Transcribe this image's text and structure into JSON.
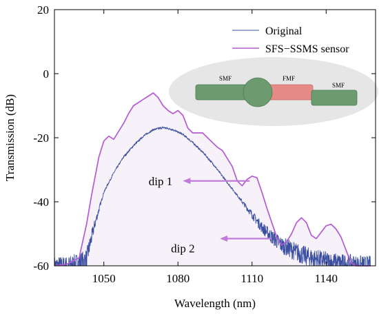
{
  "chart_data": {
    "type": "line",
    "xlabel": "Wavelength (nm)",
    "ylabel": "Transmission (dB)",
    "xlim": [
      1030,
      1160
    ],
    "ylim": [
      -60,
      20
    ],
    "xticks": [
      1050,
      1080,
      1110,
      1140
    ],
    "yticks": [
      -60,
      -40,
      -20,
      0,
      20
    ],
    "grid": false,
    "legend_position": "top-right",
    "colors": {
      "original": "#3a4fa0",
      "sensor": "#b45ad4",
      "sensor_fill": "#f7f1fa",
      "arrow": "#c07ad8"
    },
    "series": [
      {
        "name": "Original",
        "style": "noisy-line",
        "x": [
          1030,
          1035,
          1040,
          1043,
          1046,
          1050,
          1054,
          1058,
          1062,
          1066,
          1070,
          1074,
          1078,
          1082,
          1086,
          1090,
          1094,
          1098,
          1102,
          1106,
          1110,
          1114,
          1118,
          1122,
          1126,
          1130,
          1134,
          1138,
          1142,
          1146,
          1150,
          1154,
          1158
        ],
        "y": [
          -60,
          -60,
          -59,
          -57.8,
          -48,
          -37,
          -31,
          -26,
          -22.5,
          -19.5,
          -17.5,
          -16.8,
          -17.5,
          -19,
          -21.5,
          -24.5,
          -28,
          -32,
          -36,
          -40,
          -44,
          -48,
          -51,
          -53.5,
          -55,
          -56.5,
          -57.5,
          -58.2,
          -58.8,
          -59.2,
          -59.5,
          -59.8,
          -59.9
        ]
      },
      {
        "name": "SFS−SSMS sensor",
        "style": "filled-line",
        "x": [
          1030,
          1035,
          1040,
          1043,
          1045,
          1048,
          1050,
          1052,
          1054,
          1056,
          1058,
          1060,
          1062,
          1064,
          1066,
          1068,
          1070,
          1072,
          1074,
          1076,
          1078,
          1080,
          1082,
          1084,
          1086,
          1088,
          1090,
          1092,
          1094,
          1096,
          1098,
          1100,
          1102,
          1104,
          1106,
          1108,
          1110,
          1112,
          1114,
          1116,
          1118,
          1120,
          1122,
          1124,
          1126,
          1128,
          1130,
          1132,
          1134,
          1136,
          1138,
          1140,
          1142,
          1144,
          1146,
          1148,
          1150,
          1152,
          1154,
          1156,
          1158
        ],
        "y": [
          -60,
          -59.5,
          -57.5,
          -47,
          -38,
          -26,
          -21,
          -19.5,
          -20.5,
          -18,
          -15.5,
          -12.5,
          -10,
          -9,
          -8,
          -7,
          -6,
          -7.5,
          -10,
          -11.5,
          -12.5,
          -11.5,
          -13,
          -17,
          -18.5,
          -18.5,
          -18.5,
          -20,
          -21.5,
          -23,
          -24,
          -26.5,
          -29,
          -33.5,
          -35,
          -33,
          -32,
          -32.5,
          -37,
          -42,
          -46.5,
          -51,
          -53.5,
          -52.5,
          -50,
          -46.5,
          -45,
          -46.5,
          -50.5,
          -51.5,
          -49.5,
          -47.5,
          -47,
          -48.5,
          -51,
          -55,
          -59,
          -60,
          -60,
          -60,
          -60
        ]
      }
    ],
    "annotations": [
      {
        "text": "dip 1",
        "arrow_from": [
          1109,
          -33.5
        ],
        "arrow_to": [
          1082,
          -33.5
        ],
        "text_at": [
          1068,
          -33.5
        ]
      },
      {
        "text": "dip 2",
        "arrow_from": [
          1118,
          -51.5
        ],
        "arrow_to": [
          1097,
          -51.5
        ],
        "text_at": [
          1082,
          -54.5
        ]
      }
    ],
    "inset": {
      "labels": [
        "SMF",
        "FMF",
        "SMF"
      ],
      "colors": {
        "smf": "#6b9b6e",
        "fmf": "#e58a86",
        "ellipse": "#e6e6e6"
      }
    }
  }
}
